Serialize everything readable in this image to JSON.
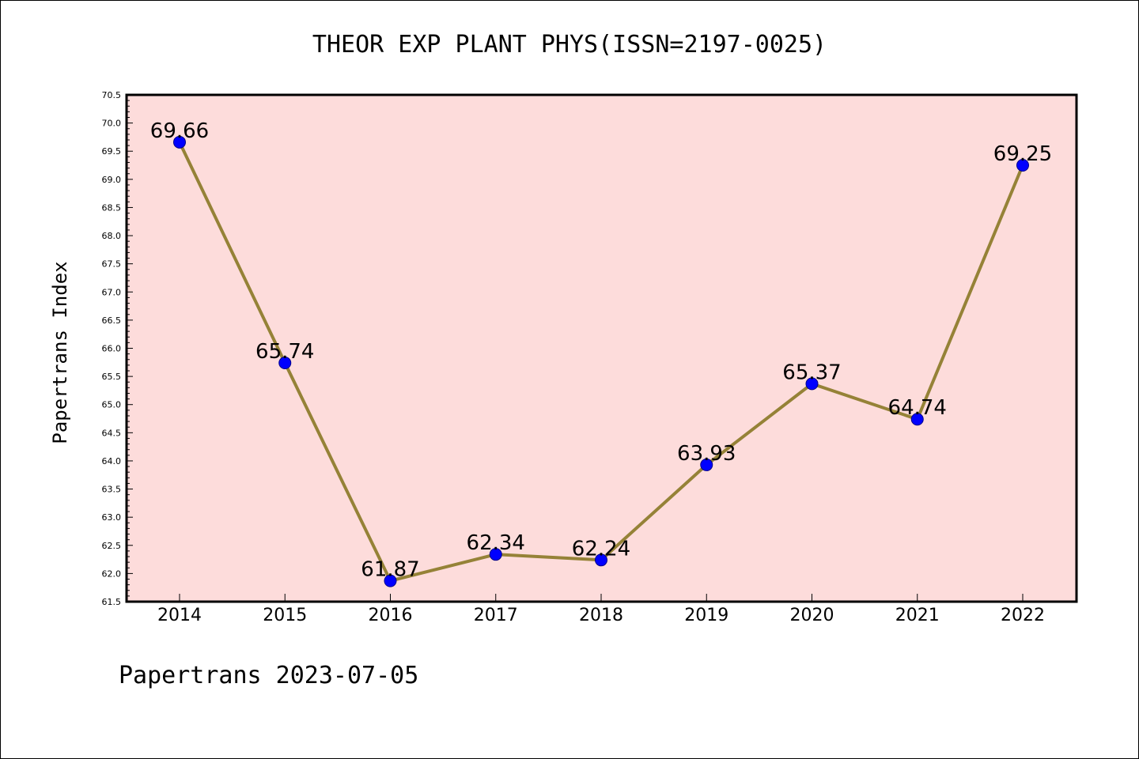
{
  "chart_data": {
    "type": "line",
    "title": "THEOR EXP PLANT PHYS(ISSN=2197-0025)",
    "ylabel": "Papertrans Index",
    "xlabel": "",
    "footer": "Papertrans 2023-07-05",
    "x": [
      "2014",
      "2015",
      "2016",
      "2017",
      "2018",
      "2019",
      "2020",
      "2021",
      "2022"
    ],
    "values": [
      69.66,
      65.74,
      61.87,
      62.34,
      62.24,
      63.93,
      65.37,
      64.74,
      69.25
    ],
    "data_labels": [
      "69.66",
      "65.74",
      "61.87",
      "62.34",
      "62.24",
      "63.93",
      "65.37",
      "64.74",
      "69.25"
    ],
    "ylim": [
      61.5,
      70.5
    ],
    "yticks": [
      "61.5",
      "62.0",
      "62.5",
      "63.0",
      "63.5",
      "64.0",
      "64.5",
      "65.0",
      "65.5",
      "66.0",
      "66.5",
      "67.0",
      "67.5",
      "68.0",
      "68.5",
      "69.0",
      "69.5",
      "70.0",
      "70.5"
    ],
    "grid": false,
    "colors": {
      "plot_background": "#fddcdb",
      "line": "#958237",
      "marker": "#0000ff",
      "marker_edge": "#00008b"
    }
  }
}
